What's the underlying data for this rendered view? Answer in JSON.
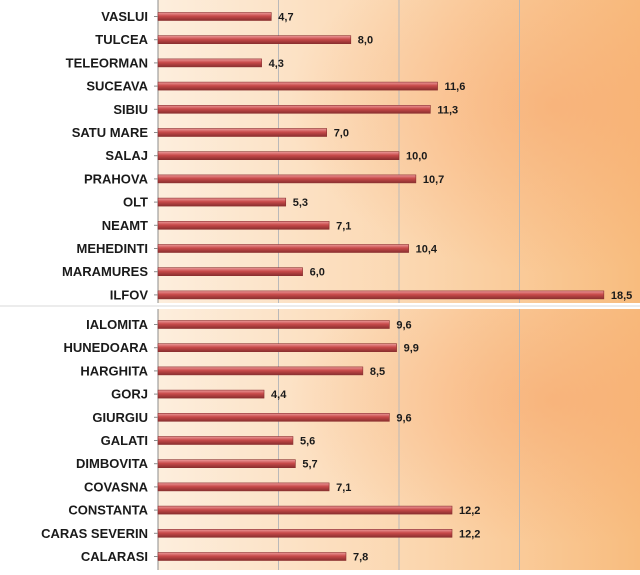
{
  "chart_data": [
    {
      "type": "bar",
      "orientation": "horizontal",
      "title": "",
      "xlabel": "",
      "ylabel": "",
      "xlim": [
        0,
        20
      ],
      "grid": true,
      "categories": [
        "VASLUI",
        "TULCEA",
        "TELEORMAN",
        "SUCEAVA",
        "SIBIU",
        "SATU MARE",
        "SALAJ",
        "PRAHOVA",
        "OLT",
        "NEAMT",
        "MEHEDINTI",
        "MARAMURES",
        "ILFOV"
      ],
      "values": [
        4.7,
        8.0,
        4.3,
        11.6,
        11.3,
        7.0,
        10.0,
        10.7,
        5.3,
        7.1,
        10.4,
        6.0,
        18.5
      ],
      "value_labels": [
        "4,7",
        "8,0",
        "4,3",
        "11,6",
        "11,3",
        "7,0",
        "10,0",
        "10,7",
        "5,3",
        "7,1",
        "10,4",
        "6,0",
        "18,5"
      ]
    },
    {
      "type": "bar",
      "orientation": "horizontal",
      "title": "",
      "xlabel": "",
      "ylabel": "",
      "xlim": [
        0,
        20
      ],
      "grid": true,
      "categories": [
        "IALOMITA",
        "HUNEDOARA",
        "HARGHITA",
        "GORJ",
        "GIURGIU",
        "GALATI",
        "DIMBOVITA",
        "COVASNA",
        "CONSTANTA",
        "CARAS SEVERIN",
        "CALARASI"
      ],
      "values": [
        9.6,
        9.9,
        8.5,
        4.4,
        9.6,
        5.6,
        5.7,
        7.1,
        12.2,
        12.2,
        7.8
      ],
      "value_labels": [
        "9,6",
        "9,9",
        "8,5",
        "4,4",
        "9,6",
        "5,6",
        "5,7",
        "7,1",
        "12,2",
        "12,2",
        "7,8"
      ]
    }
  ],
  "colors": {
    "bar": "#c84a4a",
    "bar_highlight": "#ec9a9a",
    "bar_shadow": "#8a2f2f",
    "plot_bg_light": "#fdeedd",
    "plot_bg_warm": "#f8bc7e",
    "grid": "#b9b9b9",
    "divider": "#d9d9d9"
  }
}
